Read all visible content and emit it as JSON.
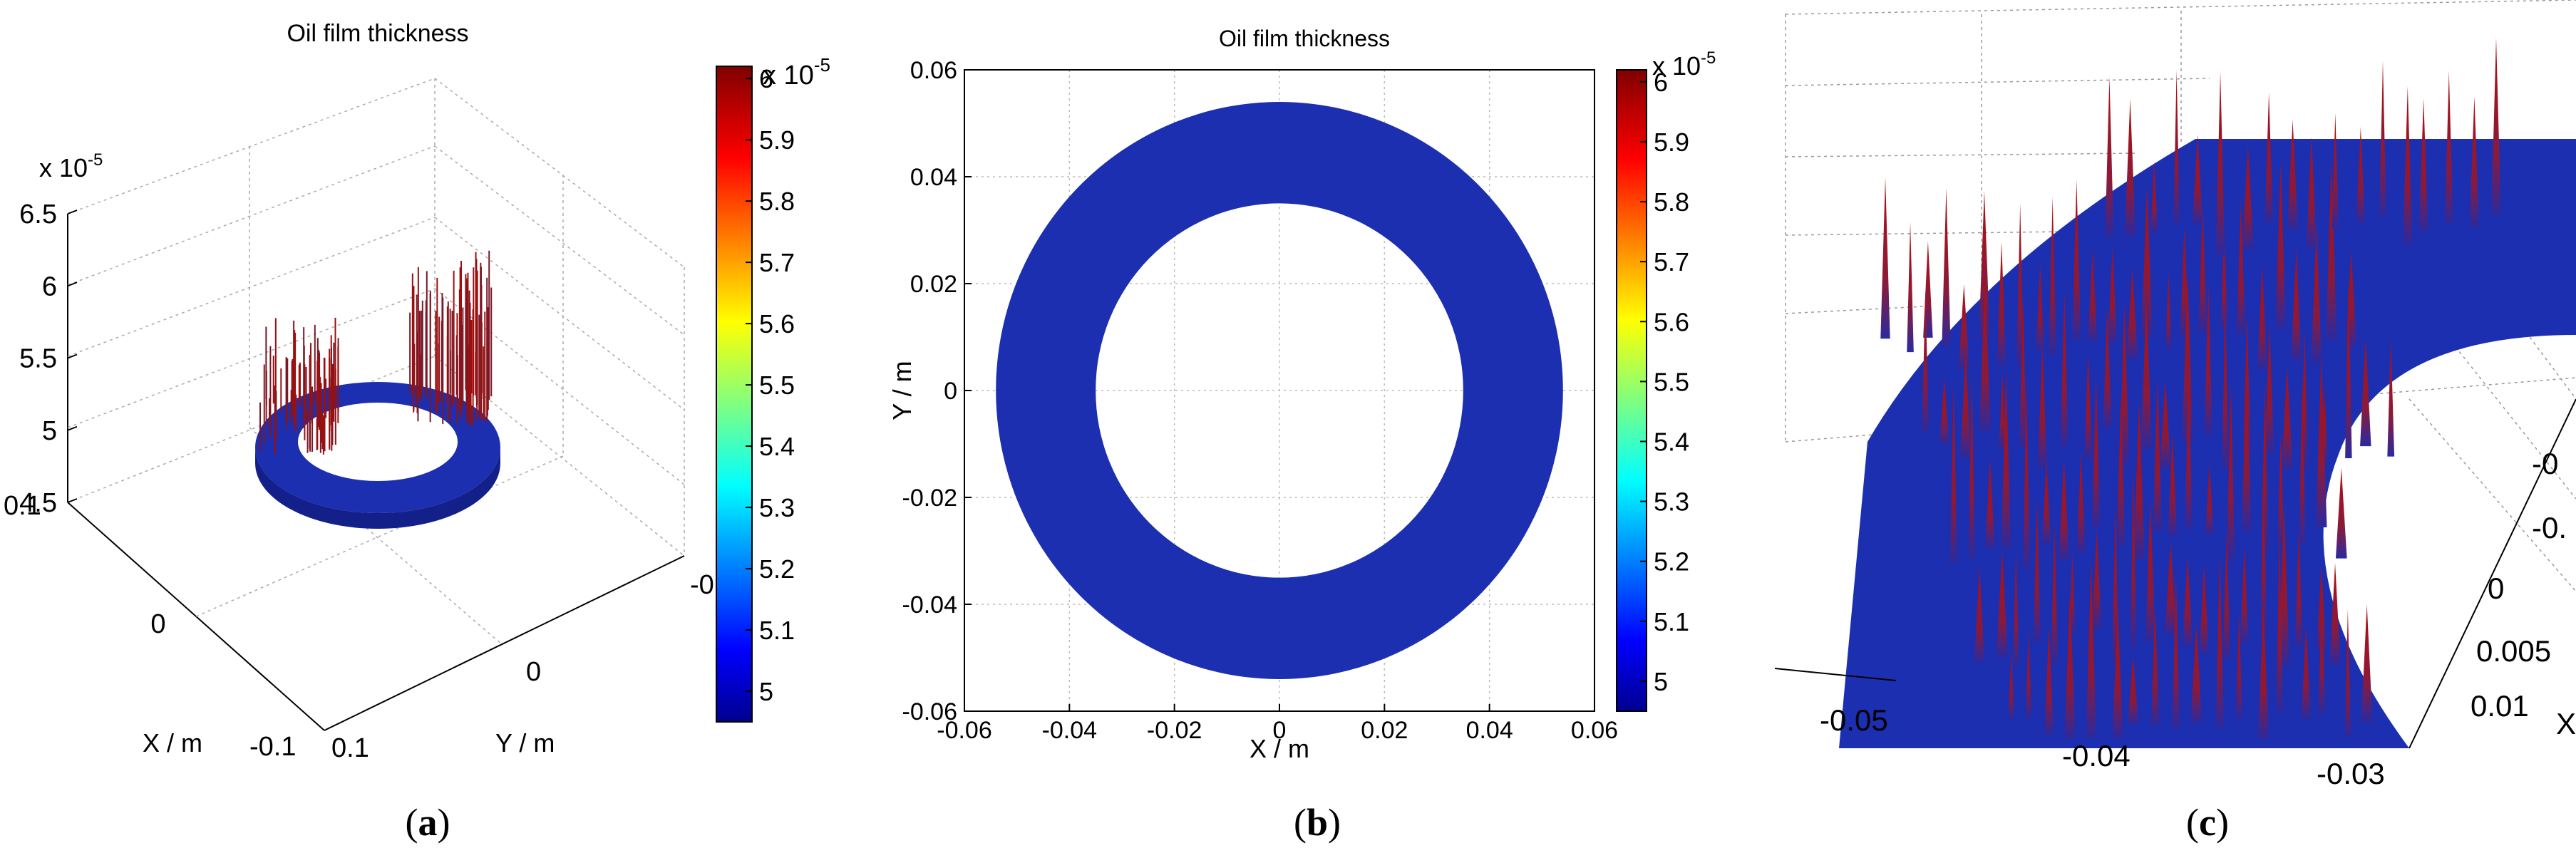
{
  "chart_data": [
    {
      "panel": "(a)",
      "type": "surface3d",
      "title": "Oil film thickness",
      "xlabel": "X / m",
      "ylabel": "Y / m",
      "zexponent_base": "x 10",
      "zexponent_power": "-5",
      "z_ticks": [
        "6.5",
        "6",
        "5.5",
        "5",
        "4.5"
      ],
      "x_ticks": [
        "0.1",
        "0",
        "-0.1"
      ],
      "y_ticks": [
        "0.1",
        "0",
        "-0"
      ],
      "zlim": [
        4.5,
        6.5
      ],
      "colorbar": {
        "exponent_base": "x 10",
        "exponent_power": "-5",
        "ticks": [
          "6",
          "5.9",
          "5.8",
          "5.7",
          "5.6",
          "5.5",
          "5.4",
          "5.3",
          "5.2",
          "5.1",
          "5"
        ],
        "range": [
          4.95,
          6.02
        ]
      },
      "grid": true
    },
    {
      "panel": "(b)",
      "type": "heatmap",
      "title": "Oil film thickness",
      "xlabel": "X / m",
      "ylabel": "Y / m",
      "x_ticks": [
        "-0.06",
        "-0.04",
        "-0.02",
        "0",
        "0.02",
        "0.04",
        "0.06"
      ],
      "y_ticks": [
        "0.06",
        "0.04",
        "0.02",
        "0",
        "-0.02",
        "-0.04",
        "-0.06"
      ],
      "xlim": [
        -0.06,
        0.06
      ],
      "ylim": [
        -0.06,
        0.06
      ],
      "ring_inner_radius": 0.035,
      "ring_outer_radius": 0.054,
      "colorbar": {
        "exponent_base": "x 10",
        "exponent_power": "-5",
        "ticks": [
          "6",
          "5.9",
          "5.8",
          "5.7",
          "5.6",
          "5.5",
          "5.4",
          "5.3",
          "5.2",
          "5.1",
          "5"
        ],
        "range": [
          4.95,
          6.02
        ]
      },
      "grid": true
    },
    {
      "panel": "(c)",
      "type": "surface3d",
      "bottom_ticks": [
        "-0.05",
        "-0.04",
        "-0.03"
      ],
      "right_ticks": [
        "-0",
        "-0.",
        "0",
        "0.005",
        "0.01"
      ],
      "right_label_fragment": "X",
      "grid": true
    }
  ],
  "captions": {
    "a_open": "(",
    "a_letter": "a",
    "a_close": ")",
    "b_open": "(",
    "b_letter": "b",
    "b_close": ")",
    "c_open": "(",
    "c_letter": "c",
    "c_close": ")"
  },
  "colors": {
    "ring_blue": "#1c2fb0",
    "spike_red": "#9a1010",
    "background": "#ffffff"
  }
}
